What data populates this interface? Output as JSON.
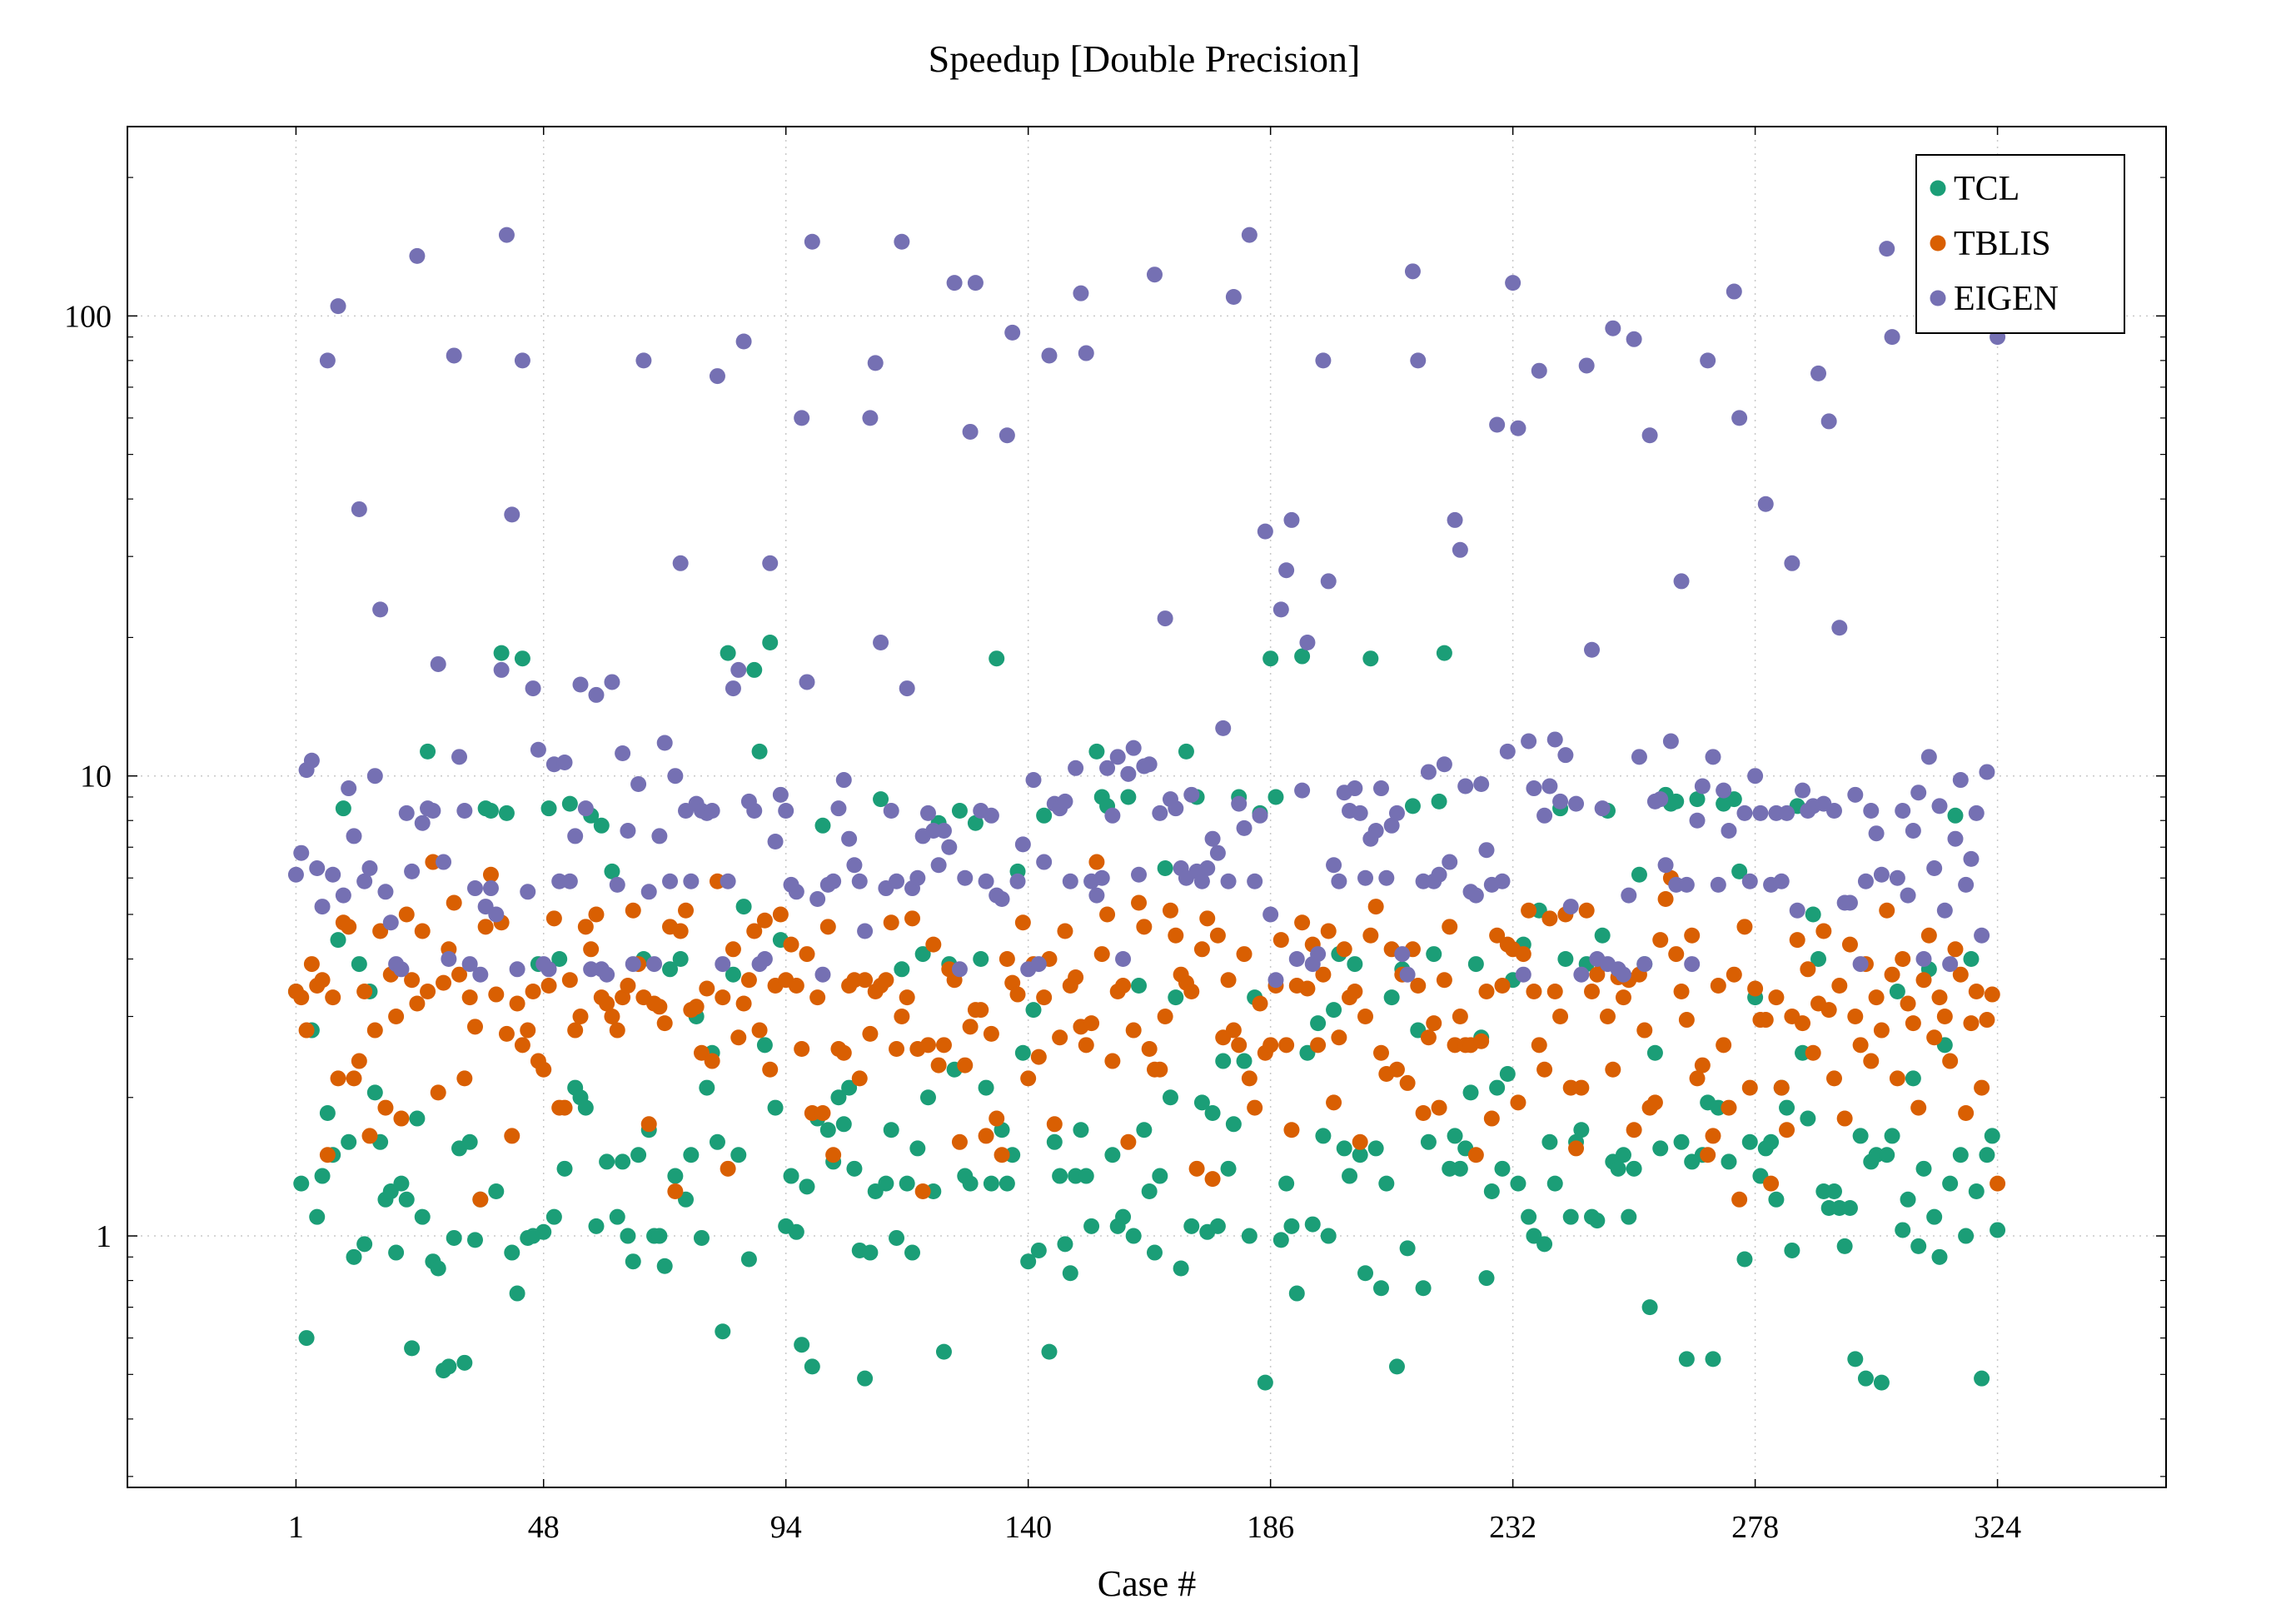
{
  "chart_data": {
    "type": "scatter",
    "title": "Speedup [Double Precision]",
    "xlabel": "Case #",
    "ylabel": "",
    "x_ticks": [
      1,
      48,
      94,
      140,
      186,
      232,
      278,
      324
    ],
    "y_ticks": [
      1,
      10,
      100
    ],
    "y_tick_labels": [
      "1",
      "10",
      "100"
    ],
    "xlim": [
      -31,
      356
    ],
    "ylim": [
      0.284,
      258
    ],
    "y_scale": "log",
    "grid": "dotted, major ticks",
    "legend_position": "top-right",
    "x": "case number 1..324 (index + 1)",
    "series": [
      {
        "name": "TCL",
        "color": "#1b9e77",
        "values": [
          3.4,
          1.3,
          0.6,
          2.8,
          1.1,
          1.35,
          1.85,
          1.5,
          4.4,
          8.5,
          1.6,
          0.9,
          3.9,
          0.96,
          3.4,
          2.05,
          1.6,
          1.2,
          1.25,
          0.92,
          1.3,
          1.2,
          0.57,
          1.8,
          1.1,
          11.3,
          0.88,
          0.85,
          0.51,
          0.52,
          0.99,
          1.55,
          0.53,
          1.6,
          0.98,
          1.2,
          8.5,
          8.4,
          1.25,
          18.5,
          8.3,
          0.92,
          0.75,
          18,
          0.99,
          1.0,
          3.9,
          1.02,
          8.5,
          1.1,
          4.0,
          1.4,
          8.7,
          2.1,
          2.0,
          1.9,
          8.2,
          1.05,
          7.8,
          1.45,
          6.2,
          1.1,
          1.45,
          1.0,
          0.88,
          1.5,
          4.0,
          1.7,
          1.0,
          1.0,
          0.86,
          3.8,
          1.35,
          4.0,
          1.2,
          1.5,
          3.0,
          0.99,
          2.1,
          2.5,
          1.6,
          0.62,
          18.5,
          3.7,
          1.5,
          5.2,
          0.89,
          17,
          11.3,
          2.6,
          19.5,
          1.9,
          4.4,
          1.05,
          1.35,
          1.02,
          0.58,
          1.28,
          0.52,
          1.8,
          7.8,
          1.7,
          1.45,
          2.0,
          1.75,
          2.1,
          1.4,
          0.93,
          0.49,
          0.92,
          1.25,
          8.9,
          1.3,
          1.7,
          0.99,
          3.8,
          1.3,
          0.92,
          1.55,
          4.1,
          2.0,
          1.25,
          7.9,
          0.56,
          3.9,
          2.3,
          8.4,
          1.35,
          1.3,
          7.9,
          4.0,
          2.1,
          1.3,
          18,
          1.7,
          1.3,
          1.5,
          6.2,
          2.5,
          0.88,
          3.1,
          0.93,
          8.2,
          0.56,
          1.6,
          1.35,
          0.96,
          0.83,
          1.35,
          1.7,
          1.35,
          1.05,
          11.3,
          9,
          8.6,
          1.5,
          1.05,
          1.1,
          9,
          1.0,
          3.5,
          1.7,
          1.25,
          0.92,
          1.35,
          6.3,
          2.0,
          3.3,
          0.85,
          11.3,
          1.05,
          9,
          1.95,
          1.02,
          1.85,
          1.05,
          2.4,
          1.4,
          1.75,
          9,
          2.4,
          1.0,
          3.3,
          8.3,
          0.48,
          18,
          9,
          0.98,
          1.3,
          1.05,
          0.75,
          18.2,
          2.5,
          1.06,
          2.9,
          1.65,
          1.0,
          3.1,
          4.1,
          1.55,
          1.35,
          3.9,
          1.5,
          0.83,
          18,
          1.55,
          0.77,
          1.3,
          3.3,
          0.52,
          3.8,
          0.94,
          8.6,
          2.8,
          0.77,
          1.6,
          4.1,
          8.8,
          18.5,
          1.4,
          1.65,
          1.4,
          1.55,
          2.05,
          3.9,
          2.7,
          0.81,
          1.25,
          2.1,
          1.4,
          2.25,
          3.6,
          1.3,
          4.3,
          1.1,
          1.0,
          5.1,
          0.96,
          1.6,
          1.3,
          8.5,
          4.0,
          1.1,
          1.6,
          1.7,
          3.9,
          1.1,
          1.08,
          4.5,
          8.4,
          1.45,
          1.4,
          1.5,
          1.1,
          1.4,
          6.1,
          3.9,
          0.7,
          2.5,
          1.55,
          9.1,
          8.7,
          8.8,
          1.6,
          0.54,
          1.45,
          8.9,
          1.5,
          1.95,
          0.54,
          1.9,
          8.7,
          1.45,
          8.9,
          6.2,
          0.89,
          1.6,
          3.3,
          1.35,
          1.55,
          1.6,
          1.2,
          2.1,
          1.9,
          0.93,
          8.6,
          2.5,
          1.8,
          5.0,
          4.0,
          1.25,
          1.15,
          1.25,
          1.15,
          0.95,
          1.15,
          0.54,
          1.65,
          0.49,
          1.45,
          1.5,
          0.48,
          1.5,
          1.65,
          3.4,
          1.03,
          1.2,
          2.2,
          0.95,
          1.4,
          3.8,
          1.1,
          0.9,
          2.6,
          1.3,
          8.2,
          1.5,
          1.0,
          4.0,
          1.25,
          0.49,
          1.5,
          1.65,
          1.03
        ]
      },
      {
        "name": "TBLIS",
        "color": "#d95f02",
        "values": [
          3.4,
          3.3,
          2.8,
          3.9,
          3.5,
          3.6,
          1.5,
          3.3,
          2.2,
          4.8,
          4.7,
          2.2,
          2.4,
          3.4,
          1.65,
          2.8,
          4.6,
          1.9,
          3.7,
          3.0,
          1.8,
          5.0,
          3.6,
          3.2,
          4.6,
          3.4,
          6.5,
          2.05,
          3.55,
          4.2,
          5.3,
          3.7,
          2.2,
          3.3,
          2.85,
          1.2,
          4.7,
          6.1,
          3.35,
          4.8,
          2.75,
          1.65,
          3.2,
          2.6,
          2.8,
          3.4,
          2.4,
          2.3,
          3.5,
          4.9,
          1.9,
          1.9,
          3.6,
          2.8,
          3.0,
          4.7,
          4.2,
          5.0,
          3.3,
          3.2,
          3.0,
          2.8,
          3.3,
          3.5,
          5.1,
          3.9,
          3.3,
          1.75,
          3.2,
          3.15,
          2.9,
          4.7,
          1.25,
          4.6,
          5.1,
          3.1,
          3.15,
          2.5,
          3.45,
          2.4,
          5.9,
          3.3,
          1.4,
          4.2,
          2.7,
          3.2,
          3.6,
          4.6,
          2.8,
          4.85,
          2.3,
          3.5,
          5.0,
          3.6,
          4.3,
          3.5,
          2.55,
          4.1,
          1.85,
          3.3,
          1.85,
          4.7,
          1.5,
          2.55,
          2.5,
          3.5,
          3.6,
          2.2,
          3.6,
          2.75,
          3.4,
          3.5,
          3.6,
          4.8,
          2.55,
          3.0,
          3.3,
          4.9,
          2.55,
          1.25,
          2.6,
          4.3,
          2.35,
          2.6,
          3.8,
          3.6,
          1.6,
          2.35,
          2.85,
          3.1,
          3.1,
          1.65,
          2.75,
          1.8,
          1.5,
          4.0,
          3.55,
          3.35,
          4.8,
          2.2,
          3.9,
          2.45,
          3.3,
          4.0,
          1.75,
          2.7,
          4.6,
          3.5,
          3.65,
          2.85,
          2.6,
          2.9,
          6.5,
          4.1,
          5.0,
          2.4,
          3.4,
          3.5,
          1.6,
          2.8,
          5.3,
          4.7,
          2.55,
          2.3,
          2.3,
          3.0,
          5.1,
          4.5,
          3.7,
          3.55,
          3.4,
          1.4,
          4.2,
          4.9,
          1.33,
          4.5,
          2.7,
          3.6,
          2.8,
          2.6,
          4.1,
          2.2,
          1.9,
          3.2,
          2.5,
          2.6,
          3.5,
          4.4,
          2.6,
          1.7,
          3.5,
          4.8,
          3.45,
          4.3,
          2.6,
          3.7,
          4.6,
          1.95,
          2.7,
          4.2,
          3.3,
          3.4,
          1.6,
          3.0,
          4.5,
          5.2,
          2.5,
          2.25,
          4.2,
          2.3,
          3.7,
          2.15,
          4.2,
          3.5,
          1.85,
          2.7,
          2.9,
          1.9,
          3.6,
          4.7,
          2.6,
          3.0,
          2.6,
          2.6,
          1.5,
          2.65,
          3.4,
          1.8,
          4.5,
          3.5,
          4.3,
          4.2,
          1.95,
          4.1,
          5.1,
          3.4,
          2.6,
          2.3,
          4.9,
          3.4,
          3.0,
          5.0,
          2.1,
          1.55,
          2.1,
          5.1,
          3.4,
          3.7,
          3.9,
          3.0,
          2.3,
          3.65,
          3.3,
          3.6,
          1.7,
          3.7,
          2.8,
          1.9,
          1.95,
          4.4,
          5.4,
          6.0,
          4.1,
          3.4,
          2.95,
          4.5,
          2.2,
          2.35,
          1.5,
          1.65,
          3.5,
          2.6,
          1.9,
          3.7,
          1.2,
          4.7,
          2.1,
          3.45,
          2.95,
          2.95,
          1.3,
          3.3,
          2.1,
          1.7,
          3.0,
          4.4,
          2.9,
          3.8,
          2.5,
          3.2,
          4.6,
          3.1,
          2.2,
          3.5,
          1.8,
          4.3,
          3.0,
          2.6,
          3.9,
          2.4,
          3.3,
          2.8,
          5.1,
          3.7,
          2.2,
          4.0,
          3.2,
          2.9,
          1.9,
          3.6,
          4.5,
          2.7,
          3.3,
          3.0,
          2.4,
          4.2,
          3.7,
          1.85,
          2.9,
          3.4,
          2.1,
          2.95,
          3.35,
          1.3
        ]
      },
      {
        "name": "EIGEN",
        "color": "#7570b3",
        "values": [
          6.1,
          6.8,
          10.3,
          10.8,
          6.3,
          5.2,
          80,
          6.1,
          105,
          5.5,
          9.4,
          7.4,
          38,
          5.9,
          6.3,
          10,
          23,
          5.6,
          4.8,
          3.9,
          3.8,
          8.3,
          6.2,
          135,
          7.9,
          8.5,
          8.4,
          17.5,
          6.5,
          4.0,
          82,
          11,
          8.4,
          3.9,
          5.7,
          3.7,
          5.2,
          5.7,
          5.0,
          17,
          150,
          37,
          3.8,
          80,
          5.6,
          15.5,
          11.4,
          3.9,
          3.8,
          10.6,
          5.9,
          10.7,
          5.9,
          7.4,
          15.8,
          8.5,
          3.8,
          15,
          3.8,
          3.7,
          16,
          5.8,
          11.2,
          7.6,
          3.9,
          9.6,
          80,
          5.6,
          3.9,
          7.4,
          11.8,
          5.9,
          10,
          29,
          8.4,
          5.9,
          8.7,
          8.4,
          8.3,
          8.4,
          74,
          3.9,
          5.9,
          15.5,
          17,
          88,
          8.8,
          8.4,
          3.9,
          4.0,
          29,
          7.2,
          9.1,
          8.4,
          5.8,
          5.6,
          60,
          16,
          145,
          5.4,
          3.7,
          5.8,
          5.9,
          8.5,
          9.8,
          7.3,
          6.4,
          5.9,
          4.6,
          60,
          79,
          19.5,
          5.7,
          8.4,
          5.9,
          145,
          15.5,
          5.7,
          6.0,
          7.4,
          8.3,
          7.6,
          6.4,
          7.6,
          7.0,
          118,
          3.8,
          6.0,
          56,
          118,
          8.4,
          5.9,
          8.2,
          5.5,
          5.4,
          55,
          92,
          5.9,
          7.1,
          3.8,
          9.8,
          3.9,
          6.5,
          82,
          8.7,
          8.5,
          8.8,
          5.9,
          10.4,
          112,
          83,
          5.9,
          5.5,
          6.0,
          10.4,
          8.2,
          11,
          4.0,
          10.1,
          11.5,
          6.1,
          10.5,
          10.6,
          123,
          8.3,
          22,
          8.9,
          8.5,
          6.3,
          6.0,
          9.1,
          6.2,
          5.9,
          6.3,
          7.3,
          6.8,
          12.7,
          5.9,
          110,
          8.7,
          7.7,
          150,
          5.9,
          8.2,
          34,
          5.0,
          3.6,
          23,
          28,
          36,
          4.0,
          9.3,
          19.5,
          3.9,
          4.1,
          80,
          26.5,
          6.4,
          5.9,
          9.2,
          8.4,
          9.4,
          8.3,
          6.0,
          7.3,
          7.6,
          9.4,
          6.0,
          7.8,
          8.3,
          4.1,
          3.7,
          125,
          80,
          5.9,
          10.2,
          5.9,
          6.1,
          10.6,
          6.5,
          36,
          31,
          9.5,
          5.6,
          5.5,
          9.6,
          6.9,
          5.8,
          58,
          5.9,
          11.3,
          118,
          57,
          3.7,
          11.9,
          9.4,
          76,
          8.2,
          9.5,
          12,
          8.8,
          11.1,
          5.2,
          8.7,
          3.7,
          78,
          18.8,
          4.0,
          8.5,
          3.9,
          94,
          3.8,
          3.7,
          5.5,
          89,
          11,
          3.9,
          55,
          8.8,
          8.9,
          6.4,
          11.9,
          5.8,
          26.5,
          5.8,
          3.9,
          8.0,
          9.5,
          80,
          11,
          5.8,
          9.3,
          7.6,
          113,
          60,
          8.3,
          5.9,
          10,
          8.3,
          39,
          5.8,
          8.3,
          5.9,
          8.3,
          29,
          5.1,
          9.3,
          8.4,
          8.6,
          75,
          8.7,
          59,
          8.4,
          21,
          5.3,
          5.3,
          9.1,
          3.9,
          5.9,
          8.4,
          7.5,
          6.1,
          140,
          90,
          6.0,
          8.4,
          5.5,
          7.6,
          9.2,
          4.0,
          11,
          6.3,
          8.6,
          5.1,
          3.9,
          7.3,
          9.8,
          5.8,
          6.6,
          8.3,
          4.5,
          10.2,
          140,
          90
        ]
      }
    ]
  }
}
